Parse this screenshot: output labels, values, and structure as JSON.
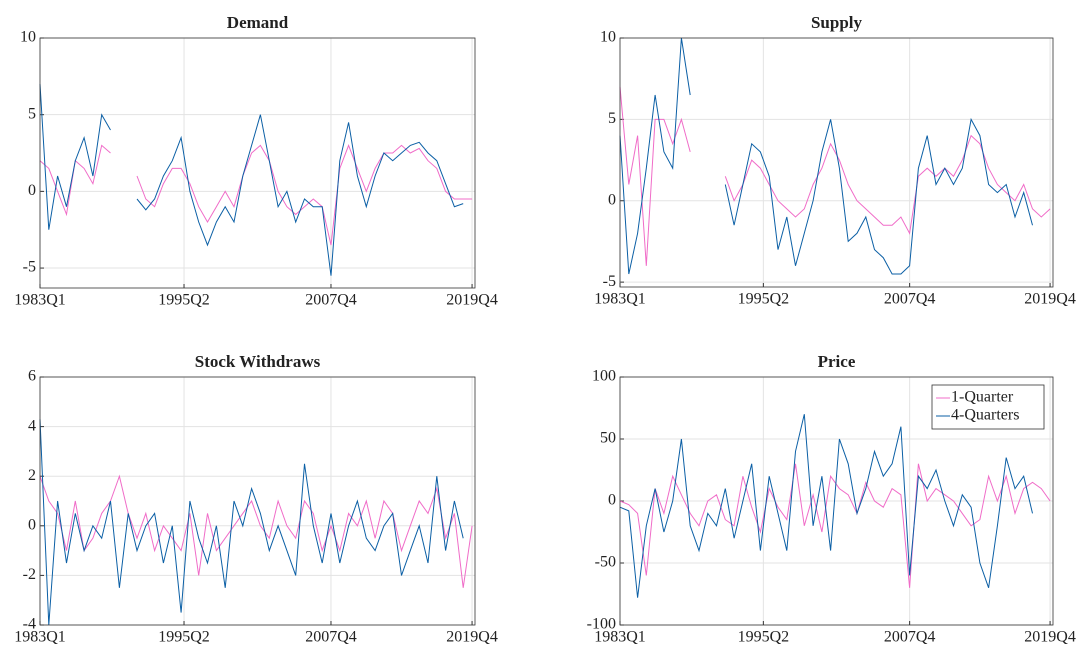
{
  "chart_data": [
    {
      "type": "line",
      "title": "Demand",
      "x": [
        0,
        3,
        6,
        9,
        12,
        15,
        18,
        21,
        24,
        27,
        30,
        33,
        36,
        39,
        42,
        45,
        48,
        51,
        54,
        57,
        60,
        63,
        66,
        69,
        72,
        75,
        78,
        81,
        84,
        87,
        90,
        93,
        96,
        99,
        102,
        105,
        108,
        111,
        114,
        117,
        120,
        123,
        126,
        129,
        132,
        135,
        138,
        141,
        144,
        147
      ],
      "xlim": [
        0,
        148
      ],
      "xticks": [
        {
          "value": 0,
          "label": "1983Q1"
        },
        {
          "value": 49,
          "label": "1995Q2"
        },
        {
          "value": 99,
          "label": "2007Q4"
        },
        {
          "value": 147,
          "label": "2019Q4"
        }
      ],
      "ylim": [
        -6.3,
        10
      ],
      "yticks": [
        -5,
        0,
        5,
        10
      ],
      "grid": true,
      "series": [
        {
          "color": "#f06cc8",
          "values": [
            2,
            1.5,
            0,
            -1.5,
            2,
            1.5,
            0.5,
            3,
            2.5,
            null,
            null,
            1,
            -0.5,
            -1,
            0.5,
            1.5,
            1.5,
            0.5,
            -1,
            -2,
            -1,
            0,
            -1,
            1,
            2.5,
            3,
            2,
            0,
            -1,
            -1.5,
            -1,
            -0.5,
            -1,
            -3.5,
            1.5,
            3,
            1.5,
            0,
            1.5,
            2.5,
            2.5,
            3,
            2.5,
            2.8,
            2,
            1.5,
            0,
            -0.5,
            -0.5,
            -0.5
          ]
        },
        {
          "color": "#0b5fa5",
          "values": [
            7,
            -2.5,
            1,
            -1,
            2,
            3.5,
            1,
            5,
            4,
            null,
            null,
            -0.5,
            -1.2,
            -0.5,
            1,
            2,
            3.5,
            0,
            -2,
            -3.5,
            -2,
            -1,
            -2,
            1,
            3,
            5,
            2,
            -1,
            0,
            -2,
            -0.5,
            -1,
            -1,
            -5.5,
            2,
            4.5,
            1,
            -1,
            1,
            2.5,
            2,
            2.5,
            3,
            3.2,
            2.5,
            2,
            0.5,
            -1,
            -0.8,
            null
          ]
        }
      ]
    },
    {
      "type": "line",
      "title": "Supply",
      "x": [
        0,
        3,
        6,
        9,
        12,
        15,
        18,
        21,
        24,
        27,
        30,
        33,
        36,
        39,
        42,
        45,
        48,
        51,
        54,
        57,
        60,
        63,
        66,
        69,
        72,
        75,
        78,
        81,
        84,
        87,
        90,
        93,
        96,
        99,
        102,
        105,
        108,
        111,
        114,
        117,
        120,
        123,
        126,
        129,
        132,
        135,
        138,
        141,
        144,
        147
      ],
      "xlim": [
        0,
        148
      ],
      "xticks": [
        {
          "value": 0,
          "label": "1983Q1"
        },
        {
          "value": 49,
          "label": "1995Q2"
        },
        {
          "value": 99,
          "label": "2007Q4"
        },
        {
          "value": 147,
          "label": "2019Q4"
        }
      ],
      "ylim": [
        -5.3,
        10
      ],
      "yticks": [
        -5,
        0,
        5,
        10
      ],
      "grid": true,
      "series": [
        {
          "color": "#f06cc8",
          "values": [
            7,
            1,
            4,
            -4,
            5,
            5,
            3.5,
            5,
            3,
            null,
            null,
            null,
            1.5,
            0,
            1,
            2.5,
            2,
            1,
            0,
            -0.5,
            -1,
            -0.5,
            1,
            2,
            3.5,
            2.5,
            1,
            0,
            -0.5,
            -1,
            -1.5,
            -1.5,
            -1,
            -2,
            1.5,
            2,
            1.5,
            2,
            1.5,
            2.5,
            4,
            3.5,
            2,
            1,
            0.5,
            0,
            1,
            -0.5,
            -1,
            -0.5
          ]
        },
        {
          "color": "#0b5fa5",
          "values": [
            4,
            -4.5,
            -2,
            2,
            6.5,
            3,
            2,
            10,
            6.5,
            null,
            null,
            null,
            1,
            -1.5,
            1,
            3.5,
            3,
            1.5,
            -3,
            -1,
            -4,
            -2,
            0,
            3,
            5,
            2,
            -2.5,
            -2,
            -1,
            -3,
            -3.5,
            -4.5,
            -4.5,
            -4,
            2,
            4,
            1,
            2,
            1,
            2,
            5,
            4,
            1,
            0.5,
            1,
            -1,
            0.5,
            -1.5,
            null,
            null
          ]
        }
      ]
    },
    {
      "type": "line",
      "title": "Stock Withdraws",
      "x": [
        0,
        3,
        6,
        9,
        12,
        15,
        18,
        21,
        24,
        27,
        30,
        33,
        36,
        39,
        42,
        45,
        48,
        51,
        54,
        57,
        60,
        63,
        66,
        69,
        72,
        75,
        78,
        81,
        84,
        87,
        90,
        93,
        96,
        99,
        102,
        105,
        108,
        111,
        114,
        117,
        120,
        123,
        126,
        129,
        132,
        135,
        138,
        141,
        144,
        147
      ],
      "xlim": [
        0,
        148
      ],
      "xticks": [
        {
          "value": 0,
          "label": "1983Q1"
        },
        {
          "value": 49,
          "label": "1995Q2"
        },
        {
          "value": 99,
          "label": "2007Q4"
        },
        {
          "value": 147,
          "label": "2019Q4"
        }
      ],
      "ylim": [
        -4,
        6
      ],
      "yticks": [
        -4,
        -2,
        0,
        2,
        4,
        6
      ],
      "grid": true,
      "series": [
        {
          "color": "#f06cc8",
          "values": [
            2,
            1,
            0.5,
            -1,
            1,
            -1,
            -0.5,
            0.5,
            1,
            2,
            0.5,
            -0.5,
            0.5,
            -1,
            0,
            -0.5,
            -1,
            0.5,
            -2,
            0.5,
            -1,
            -0.5,
            0,
            0.5,
            1,
            0,
            -0.5,
            1,
            0,
            -0.5,
            1,
            0.5,
            -1,
            0,
            -1,
            0.5,
            0,
            1,
            -0.5,
            1,
            0.5,
            -1,
            0,
            1,
            0.5,
            1.5,
            -0.5,
            0.5,
            -2.5,
            0
          ]
        },
        {
          "color": "#0b5fa5",
          "values": [
            4.3,
            -4,
            1,
            -1.5,
            0.5,
            -1,
            0,
            -0.5,
            1,
            -2.5,
            0.5,
            -1,
            0,
            0.5,
            -1.5,
            0,
            -3.5,
            1,
            -0.5,
            -1.5,
            0,
            -2.5,
            1,
            0,
            1.5,
            0.5,
            -1,
            0,
            -1,
            -2,
            2.5,
            0,
            -1.5,
            0.5,
            -1.5,
            0,
            1,
            -0.5,
            -1,
            0,
            0.5,
            -2,
            -1,
            0,
            -1.5,
            2,
            -1,
            1,
            -0.5,
            null
          ]
        }
      ]
    },
    {
      "type": "line",
      "title": "Price",
      "x": [
        0,
        3,
        6,
        9,
        12,
        15,
        18,
        21,
        24,
        27,
        30,
        33,
        36,
        39,
        42,
        45,
        48,
        51,
        54,
        57,
        60,
        63,
        66,
        69,
        72,
        75,
        78,
        81,
        84,
        87,
        90,
        93,
        96,
        99,
        102,
        105,
        108,
        111,
        114,
        117,
        120,
        123,
        126,
        129,
        132,
        135,
        138,
        141,
        144,
        147
      ],
      "xlim": [
        0,
        148
      ],
      "xticks": [
        {
          "value": 0,
          "label": "1983Q1"
        },
        {
          "value": 49,
          "label": "1995Q2"
        },
        {
          "value": 99,
          "label": "2007Q4"
        },
        {
          "value": 147,
          "label": "2019Q4"
        }
      ],
      "ylim": [
        -100,
        100
      ],
      "yticks": [
        -100,
        -50,
        0,
        50,
        100
      ],
      "grid": true,
      "legend": "northeast",
      "series": [
        {
          "name": "1-Quarter",
          "color": "#f06cc8",
          "values": [
            0,
            -3,
            -10,
            -60,
            10,
            -10,
            20,
            5,
            -10,
            -20,
            0,
            5,
            -15,
            -20,
            20,
            -5,
            -25,
            10,
            -5,
            -15,
            30,
            -20,
            5,
            -25,
            20,
            10,
            5,
            -10,
            15,
            0,
            -5,
            10,
            5,
            -70,
            30,
            0,
            10,
            5,
            0,
            -10,
            -20,
            -15,
            20,
            0,
            20,
            -10,
            10,
            15,
            10,
            0
          ]
        },
        {
          "name": "4-Quarters",
          "color": "#0b5fa5",
          "values": [
            -5,
            -8,
            -78,
            -20,
            10,
            -25,
            0,
            50,
            -20,
            -40,
            -10,
            -20,
            10,
            -30,
            0,
            30,
            -40,
            20,
            -10,
            -40,
            40,
            70,
            -20,
            20,
            -40,
            50,
            30,
            -10,
            10,
            40,
            20,
            30,
            60,
            -60,
            20,
            10,
            25,
            0,
            -20,
            5,
            -5,
            -50,
            -70,
            -20,
            35,
            10,
            20,
            -10,
            null,
            null
          ]
        }
      ]
    }
  ]
}
